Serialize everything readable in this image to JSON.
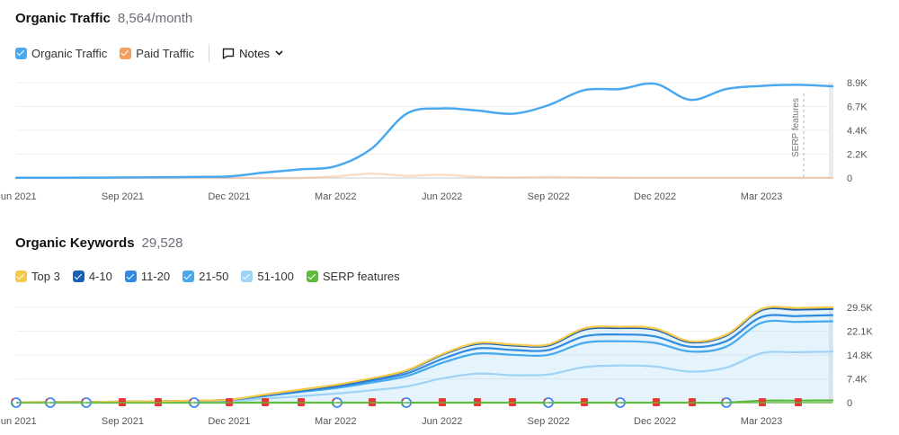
{
  "traffic": {
    "title": "Organic Traffic",
    "value": "8,564/month",
    "legend": [
      {
        "label": "Organic Traffic",
        "color": "#4aa8ef"
      },
      {
        "label": "Paid Traffic",
        "color": "#f29f5f"
      }
    ],
    "notes_label": "Notes",
    "annotation": "SERP features"
  },
  "keywords": {
    "title": "Organic Keywords",
    "value": "29,528",
    "legend": [
      {
        "label": "Top 3",
        "color": "#f7c948"
      },
      {
        "label": "4-10",
        "color": "#1a5fb4"
      },
      {
        "label": "11-20",
        "color": "#2f8ae0"
      },
      {
        "label": "21-50",
        "color": "#46a9ee"
      },
      {
        "label": "51-100",
        "color": "#9ed3f6"
      },
      {
        "label": "SERP features",
        "color": "#5fbb3a"
      }
    ]
  },
  "chart_data": [
    {
      "type": "line",
      "title": "Organic Traffic",
      "x_ticks": [
        "Jun 2021",
        "Sep 2021",
        "Dec 2021",
        "Mar 2022",
        "Jun 2022",
        "Sep 2022",
        "Dec 2022",
        "Mar 2023"
      ],
      "y_ticks": [
        "8.9K",
        "6.7K",
        "4.4K",
        "2.2K",
        "0"
      ],
      "ylim": [
        0,
        8900
      ],
      "x": [
        "2021-06",
        "2021-07",
        "2021-08",
        "2021-09",
        "2021-10",
        "2021-11",
        "2021-12",
        "2022-01",
        "2022-02",
        "2022-03",
        "2022-04",
        "2022-05",
        "2022-06",
        "2022-07",
        "2022-08",
        "2022-09",
        "2022-10",
        "2022-11",
        "2022-12",
        "2023-01",
        "2023-02",
        "2023-03",
        "2023-04",
        "2023-05"
      ],
      "series": [
        {
          "name": "Organic Traffic",
          "color": "#4aa8ef",
          "values": [
            20,
            25,
            30,
            40,
            60,
            90,
            150,
            500,
            800,
            1100,
            2700,
            6000,
            6500,
            6300,
            6000,
            6800,
            8200,
            8300,
            8800,
            7300,
            8300,
            8600,
            8700,
            8560
          ]
        },
        {
          "name": "Paid Traffic",
          "color": "#f29f5f",
          "values": [
            0,
            0,
            0,
            0,
            0,
            0,
            0,
            0,
            0,
            150,
            400,
            200,
            300,
            100,
            50,
            100,
            50,
            30,
            20,
            10,
            10,
            10,
            10,
            10
          ]
        }
      ]
    },
    {
      "type": "area",
      "title": "Organic Keywords",
      "x_ticks": [
        "Jun 2021",
        "Sep 2021",
        "Dec 2021",
        "Mar 2022",
        "Jun 2022",
        "Sep 2022",
        "Dec 2022",
        "Mar 2023"
      ],
      "y_ticks": [
        "29.5K",
        "22.1K",
        "14.8K",
        "7.4K",
        "0"
      ],
      "ylim": [
        0,
        29500
      ],
      "x": [
        "2021-06",
        "2021-07",
        "2021-08",
        "2021-09",
        "2021-10",
        "2021-11",
        "2021-12",
        "2022-01",
        "2022-02",
        "2022-03",
        "2022-04",
        "2022-05",
        "2022-06",
        "2022-07",
        "2022-08",
        "2022-09",
        "2022-10",
        "2022-11",
        "2022-12",
        "2023-01",
        "2023-02",
        "2023-03",
        "2023-04",
        "2023-05"
      ],
      "series": [
        {
          "name": "Top 3",
          "color": "#f7c948",
          "values": [
            100,
            150,
            200,
            300,
            400,
            600,
            900,
            2500,
            4000,
            5500,
            7500,
            10000,
            15000,
            18500,
            18000,
            18000,
            23000,
            23500,
            23000,
            19000,
            21000,
            29000,
            29300,
            29528
          ]
        },
        {
          "name": "4-10",
          "color": "#1a5fb4",
          "values": [
            100,
            150,
            200,
            300,
            400,
            600,
            900,
            2400,
            3900,
            5300,
            7300,
            9800,
            14800,
            18200,
            17700,
            17700,
            22600,
            23100,
            22600,
            18700,
            20700,
            28600,
            28800,
            29000
          ]
        },
        {
          "name": "11-20",
          "color": "#2f8ae0",
          "values": [
            90,
            140,
            180,
            280,
            380,
            560,
            850,
            2200,
            3600,
            4900,
            6800,
            9000,
            13500,
            16800,
            16300,
            16300,
            20500,
            21100,
            20500,
            17300,
            19000,
            26500,
            26800,
            27100
          ]
        },
        {
          "name": "21-50",
          "color": "#46a9ee",
          "values": [
            80,
            130,
            170,
            260,
            350,
            520,
            800,
            2000,
            3300,
            4500,
            6200,
            8200,
            12300,
            15200,
            14800,
            14800,
            18500,
            19000,
            18500,
            15800,
            17300,
            24700,
            25000,
            25200
          ]
        },
        {
          "name": "51-100",
          "color": "#9ed3f6",
          "values": [
            50,
            80,
            100,
            150,
            200,
            300,
            450,
            1200,
            2000,
            2800,
            3800,
            5000,
            7500,
            9000,
            8500,
            8700,
            11000,
            11500,
            11200,
            9600,
            10800,
            15300,
            15600,
            15800
          ]
        },
        {
          "name": "SERP features",
          "color": "#5fbb3a",
          "values": [
            0,
            0,
            0,
            0,
            0,
            0,
            0,
            0,
            0,
            0,
            0,
            0,
            0,
            0,
            0,
            0,
            0,
            0,
            0,
            0,
            0,
            600,
            650,
            700
          ]
        }
      ]
    }
  ]
}
